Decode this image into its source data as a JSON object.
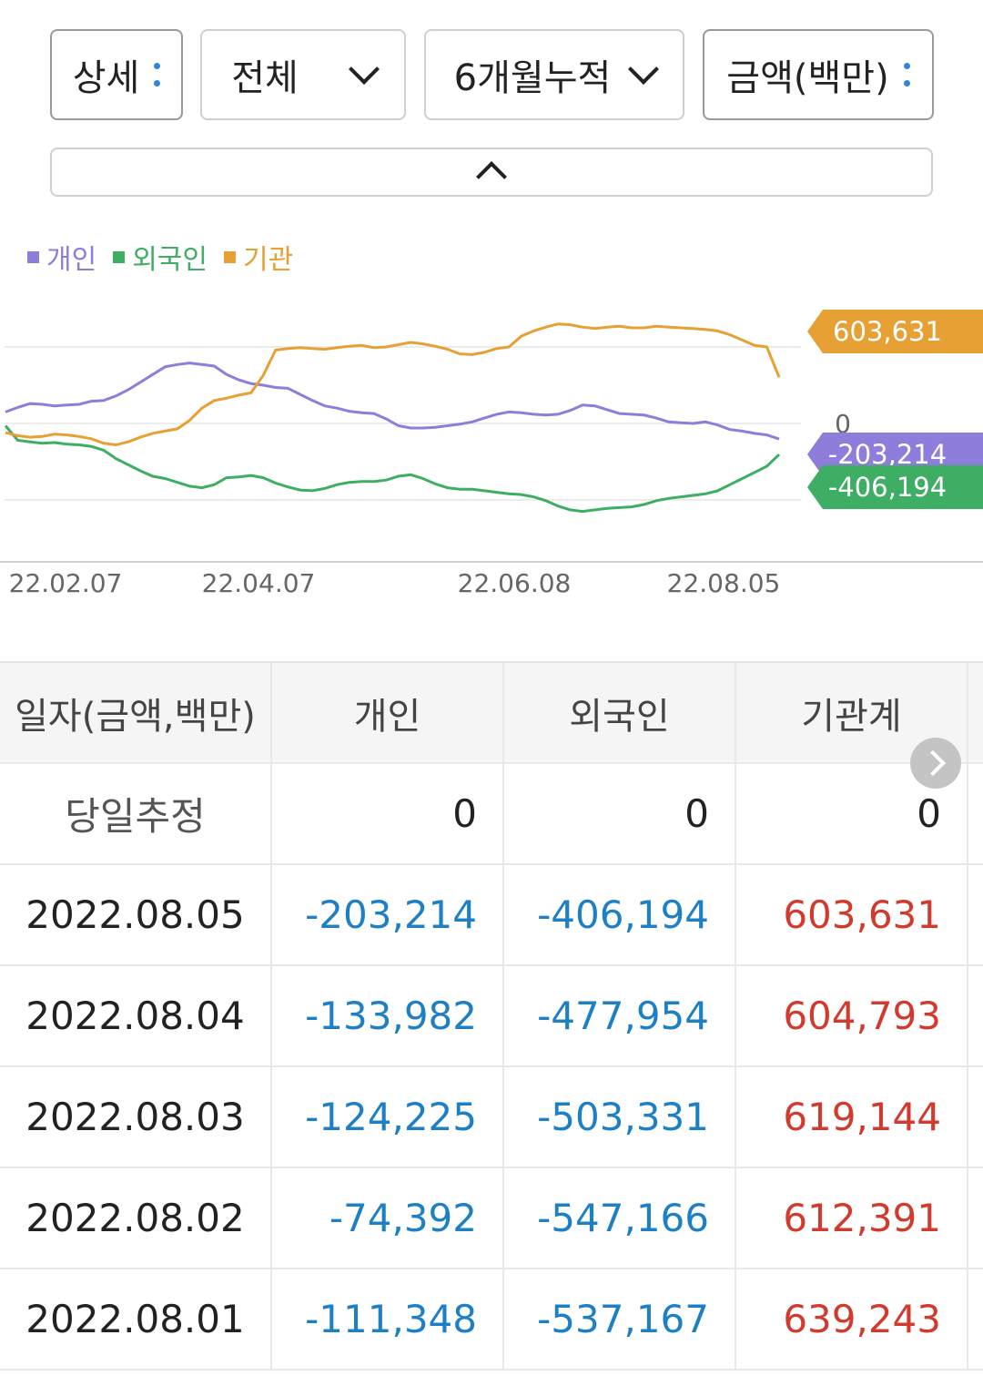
{
  "filters": {
    "detail_label": "상세",
    "scope_label": "전체",
    "period_label": "6개월누적",
    "unit_label": "금액(백만)"
  },
  "legend": {
    "individual": "개인",
    "foreign": "외국인",
    "institution": "기관"
  },
  "colors": {
    "individual": "#8e7ddb",
    "foreign": "#3dae63",
    "institution": "#e7a033",
    "negative": "#1d7fc4",
    "positive": "#d23a2e"
  },
  "chart_data": {
    "type": "line",
    "x_ticks": [
      "22.02.07",
      "22.04.07",
      "22.06.08",
      "22.08.05"
    ],
    "y_zero_label": "0",
    "series": [
      {
        "name": "개인",
        "last_label": "-203,214",
        "values": [
          150000,
          210000,
          260000,
          250000,
          230000,
          240000,
          250000,
          290000,
          300000,
          360000,
          440000,
          540000,
          640000,
          740000,
          770000,
          790000,
          770000,
          750000,
          640000,
          570000,
          520000,
          500000,
          470000,
          460000,
          380000,
          300000,
          230000,
          200000,
          160000,
          140000,
          130000,
          60000,
          -30000,
          -60000,
          -60000,
          -50000,
          -30000,
          -10000,
          20000,
          70000,
          120000,
          150000,
          140000,
          120000,
          110000,
          120000,
          170000,
          240000,
          230000,
          180000,
          130000,
          120000,
          110000,
          70000,
          20000,
          10000,
          0,
          20000,
          -20000,
          -80000,
          -100000,
          -130000,
          -150000,
          -203214
        ]
      },
      {
        "name": "외국인",
        "last_label": "-406,194",
        "values": [
          -30000,
          -220000,
          -240000,
          -260000,
          -250000,
          -270000,
          -280000,
          -300000,
          -350000,
          -460000,
          -540000,
          -620000,
          -690000,
          -720000,
          -770000,
          -820000,
          -840000,
          -800000,
          -710000,
          -700000,
          -680000,
          -710000,
          -780000,
          -830000,
          -870000,
          -880000,
          -850000,
          -800000,
          -770000,
          -760000,
          -760000,
          -740000,
          -690000,
          -670000,
          -720000,
          -790000,
          -840000,
          -860000,
          -860000,
          -880000,
          -900000,
          -920000,
          -930000,
          -960000,
          -1010000,
          -1080000,
          -1130000,
          -1150000,
          -1130000,
          -1110000,
          -1100000,
          -1090000,
          -1060000,
          -1010000,
          -980000,
          -960000,
          -940000,
          -920000,
          -880000,
          -800000,
          -720000,
          -640000,
          -560000,
          -406194
        ]
      },
      {
        "name": "기관",
        "last_label": "603,631",
        "values": [
          -120000,
          -160000,
          -180000,
          -170000,
          -140000,
          -150000,
          -170000,
          -200000,
          -260000,
          -280000,
          -240000,
          -180000,
          -130000,
          -100000,
          -70000,
          40000,
          200000,
          300000,
          330000,
          370000,
          400000,
          630000,
          960000,
          980000,
          990000,
          980000,
          970000,
          990000,
          1010000,
          1020000,
          990000,
          1000000,
          1030000,
          1060000,
          1040000,
          1010000,
          970000,
          910000,
          900000,
          930000,
          980000,
          1000000,
          1140000,
          1210000,
          1260000,
          1300000,
          1290000,
          1260000,
          1240000,
          1260000,
          1270000,
          1250000,
          1250000,
          1270000,
          1260000,
          1250000,
          1240000,
          1230000,
          1210000,
          1160000,
          1090000,
          1020000,
          1000000,
          603631
        ]
      }
    ]
  },
  "table": {
    "headers": [
      "일자(금액,백만)",
      "개인",
      "외국인",
      "기관계"
    ],
    "rows": [
      {
        "date": "당일추정",
        "individual": "0",
        "foreign": "0",
        "institution": "0"
      },
      {
        "date": "2022.08.05",
        "individual": "-203,214",
        "foreign": "-406,194",
        "institution": "603,631"
      },
      {
        "date": "2022.08.04",
        "individual": "-133,982",
        "foreign": "-477,954",
        "institution": "604,793"
      },
      {
        "date": "2022.08.03",
        "individual": "-124,225",
        "foreign": "-503,331",
        "institution": "619,144"
      },
      {
        "date": "2022.08.02",
        "individual": "-74,392",
        "foreign": "-547,166",
        "institution": "612,391"
      },
      {
        "date": "2022.08.01",
        "individual": "-111,348",
        "foreign": "-537,167",
        "institution": "639,243"
      }
    ]
  }
}
